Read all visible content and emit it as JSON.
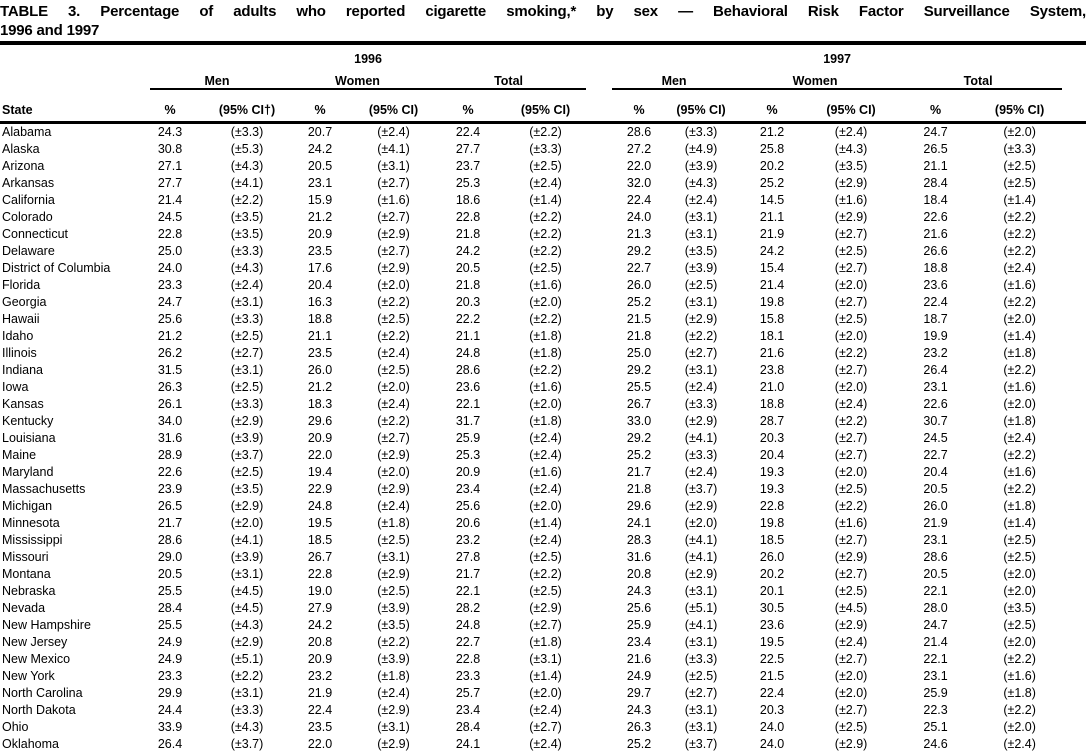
{
  "title": {
    "line1": "TABLE 3. Percentage of adults who reported cigarette smoking,* by sex — Behavioral Risk Factor Surveillance System,",
    "line2": "1996 and 1997"
  },
  "header": {
    "state": "State",
    "years": [
      "1996",
      "1997"
    ],
    "groups": [
      "Men",
      "Women",
      "Total"
    ],
    "pct": "%",
    "ci_first": "(95% CI†)",
    "ci": "(95% CI)"
  },
  "colors": {
    "text": "#000000",
    "background": "#ffffff"
  },
  "rows": [
    {
      "state": "Alabama",
      "cells": [
        "24.3",
        "(±3.3)",
        "20.7",
        "(±2.4)",
        "22.4",
        "(±2.2)",
        "28.6",
        "(±3.3)",
        "21.2",
        "(±2.4)",
        "24.7",
        "(±2.0)"
      ]
    },
    {
      "state": "Alaska",
      "cells": [
        "30.8",
        "(±5.3)",
        "24.2",
        "(±4.1)",
        "27.7",
        "(±3.3)",
        "27.2",
        "(±4.9)",
        "25.8",
        "(±4.3)",
        "26.5",
        "(±3.3)"
      ]
    },
    {
      "state": "Arizona",
      "cells": [
        "27.1",
        "(±4.3)",
        "20.5",
        "(±3.1)",
        "23.7",
        "(±2.5)",
        "22.0",
        "(±3.9)",
        "20.2",
        "(±3.5)",
        "21.1",
        "(±2.5)"
      ]
    },
    {
      "state": "Arkansas",
      "cells": [
        "27.7",
        "(±4.1)",
        "23.1",
        "(±2.7)",
        "25.3",
        "(±2.4)",
        "32.0",
        "(±4.3)",
        "25.2",
        "(±2.9)",
        "28.4",
        "(±2.5)"
      ]
    },
    {
      "state": "California",
      "cells": [
        "21.4",
        "(±2.2)",
        "15.9",
        "(±1.6)",
        "18.6",
        "(±1.4)",
        "22.4",
        "(±2.4)",
        "14.5",
        "(±1.6)",
        "18.4",
        "(±1.4)"
      ]
    },
    {
      "state": "Colorado",
      "cells": [
        "24.5",
        "(±3.5)",
        "21.2",
        "(±2.7)",
        "22.8",
        "(±2.2)",
        "24.0",
        "(±3.1)",
        "21.1",
        "(±2.9)",
        "22.6",
        "(±2.2)"
      ]
    },
    {
      "state": "Connecticut",
      "cells": [
        "22.8",
        "(±3.5)",
        "20.9",
        "(±2.9)",
        "21.8",
        "(±2.2)",
        "21.3",
        "(±3.1)",
        "21.9",
        "(±2.7)",
        "21.6",
        "(±2.2)"
      ]
    },
    {
      "state": "Delaware",
      "cells": [
        "25.0",
        "(±3.3)",
        "23.5",
        "(±2.7)",
        "24.2",
        "(±2.2)",
        "29.2",
        "(±3.5)",
        "24.2",
        "(±2.5)",
        "26.6",
        "(±2.2)"
      ]
    },
    {
      "state": "District of Columbia",
      "cells": [
        "24.0",
        "(±4.3)",
        "17.6",
        "(±2.9)",
        "20.5",
        "(±2.5)",
        "22.7",
        "(±3.9)",
        "15.4",
        "(±2.7)",
        "18.8",
        "(±2.4)"
      ]
    },
    {
      "state": "Florida",
      "cells": [
        "23.3",
        "(±2.4)",
        "20.4",
        "(±2.0)",
        "21.8",
        "(±1.6)",
        "26.0",
        "(±2.5)",
        "21.4",
        "(±2.0)",
        "23.6",
        "(±1.6)"
      ]
    },
    {
      "state": "Georgia",
      "cells": [
        "24.7",
        "(±3.1)",
        "16.3",
        "(±2.2)",
        "20.3",
        "(±2.0)",
        "25.2",
        "(±3.1)",
        "19.8",
        "(±2.7)",
        "22.4",
        "(±2.2)"
      ]
    },
    {
      "state": "Hawaii",
      "cells": [
        "25.6",
        "(±3.3)",
        "18.8",
        "(±2.5)",
        "22.2",
        "(±2.2)",
        "21.5",
        "(±2.9)",
        "15.8",
        "(±2.5)",
        "18.7",
        "(±2.0)"
      ]
    },
    {
      "state": "Idaho",
      "cells": [
        "21.2",
        "(±2.5)",
        "21.1",
        "(±2.2)",
        "21.1",
        "(±1.8)",
        "21.8",
        "(±2.2)",
        "18.1",
        "(±2.0)",
        "19.9",
        "(±1.4)"
      ]
    },
    {
      "state": "Illinois",
      "cells": [
        "26.2",
        "(±2.7)",
        "23.5",
        "(±2.4)",
        "24.8",
        "(±1.8)",
        "25.0",
        "(±2.7)",
        "21.6",
        "(±2.2)",
        "23.2",
        "(±1.8)"
      ]
    },
    {
      "state": "Indiana",
      "cells": [
        "31.5",
        "(±3.1)",
        "26.0",
        "(±2.5)",
        "28.6",
        "(±2.2)",
        "29.2",
        "(±3.1)",
        "23.8",
        "(±2.7)",
        "26.4",
        "(±2.2)"
      ]
    },
    {
      "state": "Iowa",
      "cells": [
        "26.3",
        "(±2.5)",
        "21.2",
        "(±2.0)",
        "23.6",
        "(±1.6)",
        "25.5",
        "(±2.4)",
        "21.0",
        "(±2.0)",
        "23.1",
        "(±1.6)"
      ]
    },
    {
      "state": "Kansas",
      "cells": [
        "26.1",
        "(±3.3)",
        "18.3",
        "(±2.4)",
        "22.1",
        "(±2.0)",
        "26.7",
        "(±3.3)",
        "18.8",
        "(±2.4)",
        "22.6",
        "(±2.0)"
      ]
    },
    {
      "state": "Kentucky",
      "cells": [
        "34.0",
        "(±2.9)",
        "29.6",
        "(±2.2)",
        "31.7",
        "(±1.8)",
        "33.0",
        "(±2.9)",
        "28.7",
        "(±2.2)",
        "30.7",
        "(±1.8)"
      ]
    },
    {
      "state": "Louisiana",
      "cells": [
        "31.6",
        "(±3.9)",
        "20.9",
        "(±2.7)",
        "25.9",
        "(±2.4)",
        "29.2",
        "(±4.1)",
        "20.3",
        "(±2.7)",
        "24.5",
        "(±2.4)"
      ]
    },
    {
      "state": "Maine",
      "cells": [
        "28.9",
        "(±3.7)",
        "22.0",
        "(±2.9)",
        "25.3",
        "(±2.4)",
        "25.2",
        "(±3.3)",
        "20.4",
        "(±2.7)",
        "22.7",
        "(±2.2)"
      ]
    },
    {
      "state": "Maryland",
      "cells": [
        "22.6",
        "(±2.5)",
        "19.4",
        "(±2.0)",
        "20.9",
        "(±1.6)",
        "21.7",
        "(±2.4)",
        "19.3",
        "(±2.0)",
        "20.4",
        "(±1.6)"
      ]
    },
    {
      "state": "Massachusetts",
      "cells": [
        "23.9",
        "(±3.5)",
        "22.9",
        "(±2.9)",
        "23.4",
        "(±2.4)",
        "21.8",
        "(±3.7)",
        "19.3",
        "(±2.5)",
        "20.5",
        "(±2.2)"
      ]
    },
    {
      "state": "Michigan",
      "cells": [
        "26.5",
        "(±2.9)",
        "24.8",
        "(±2.4)",
        "25.6",
        "(±2.0)",
        "29.6",
        "(±2.9)",
        "22.8",
        "(±2.2)",
        "26.0",
        "(±1.8)"
      ]
    },
    {
      "state": "Minnesota",
      "cells": [
        "21.7",
        "(±2.0)",
        "19.5",
        "(±1.8)",
        "20.6",
        "(±1.4)",
        "24.1",
        "(±2.0)",
        "19.8",
        "(±1.6)",
        "21.9",
        "(±1.4)"
      ]
    },
    {
      "state": "Mississippi",
      "cells": [
        "28.6",
        "(±4.1)",
        "18.5",
        "(±2.5)",
        "23.2",
        "(±2.4)",
        "28.3",
        "(±4.1)",
        "18.5",
        "(±2.7)",
        "23.1",
        "(±2.5)"
      ]
    },
    {
      "state": "Missouri",
      "cells": [
        "29.0",
        "(±3.9)",
        "26.7",
        "(±3.1)",
        "27.8",
        "(±2.5)",
        "31.6",
        "(±4.1)",
        "26.0",
        "(±2.9)",
        "28.6",
        "(±2.5)"
      ]
    },
    {
      "state": "Montana",
      "cells": [
        "20.5",
        "(±3.1)",
        "22.8",
        "(±2.9)",
        "21.7",
        "(±2.2)",
        "20.8",
        "(±2.9)",
        "20.2",
        "(±2.7)",
        "20.5",
        "(±2.0)"
      ]
    },
    {
      "state": "Nebraska",
      "cells": [
        "25.5",
        "(±4.5)",
        "19.0",
        "(±2.5)",
        "22.1",
        "(±2.5)",
        "24.3",
        "(±3.1)",
        "20.1",
        "(±2.5)",
        "22.1",
        "(±2.0)"
      ]
    },
    {
      "state": "Nevada",
      "cells": [
        "28.4",
        "(±4.5)",
        "27.9",
        "(±3.9)",
        "28.2",
        "(±2.9)",
        "25.6",
        "(±5.1)",
        "30.5",
        "(±4.5)",
        "28.0",
        "(±3.5)"
      ]
    },
    {
      "state": "New Hampshire",
      "cells": [
        "25.5",
        "(±4.3)",
        "24.2",
        "(±3.5)",
        "24.8",
        "(±2.7)",
        "25.9",
        "(±4.1)",
        "23.6",
        "(±2.9)",
        "24.7",
        "(±2.5)"
      ]
    },
    {
      "state": "New Jersey",
      "cells": [
        "24.9",
        "(±2.9)",
        "20.8",
        "(±2.2)",
        "22.7",
        "(±1.8)",
        "23.4",
        "(±3.1)",
        "19.5",
        "(±2.4)",
        "21.4",
        "(±2.0)"
      ]
    },
    {
      "state": "New Mexico",
      "cells": [
        "24.9",
        "(±5.1)",
        "20.9",
        "(±3.9)",
        "22.8",
        "(±3.1)",
        "21.6",
        "(±3.3)",
        "22.5",
        "(±2.7)",
        "22.1",
        "(±2.2)"
      ]
    },
    {
      "state": "New York",
      "cells": [
        "23.3",
        "(±2.2)",
        "23.2",
        "(±1.8)",
        "23.3",
        "(±1.4)",
        "24.9",
        "(±2.5)",
        "21.5",
        "(±2.0)",
        "23.1",
        "(±1.6)"
      ]
    },
    {
      "state": "North Carolina",
      "cells": [
        "29.9",
        "(±3.1)",
        "21.9",
        "(±2.4)",
        "25.7",
        "(±2.0)",
        "29.7",
        "(±2.7)",
        "22.4",
        "(±2.0)",
        "25.9",
        "(±1.8)"
      ]
    },
    {
      "state": "North Dakota",
      "cells": [
        "24.4",
        "(±3.3)",
        "22.4",
        "(±2.9)",
        "23.4",
        "(±2.4)",
        "24.3",
        "(±3.1)",
        "20.3",
        "(±2.7)",
        "22.3",
        "(±2.2)"
      ]
    },
    {
      "state": "Ohio",
      "cells": [
        "33.9",
        "(±4.3)",
        "23.5",
        "(±3.1)",
        "28.4",
        "(±2.7)",
        "26.3",
        "(±3.1)",
        "24.0",
        "(±2.5)",
        "25.1",
        "(±2.0)"
      ]
    },
    {
      "state": "Oklahoma",
      "cells": [
        "26.4",
        "(±3.7)",
        "22.0",
        "(±2.9)",
        "24.1",
        "(±2.4)",
        "25.2",
        "(±3.7)",
        "24.0",
        "(±2.9)",
        "24.6",
        "(±2.4)"
      ]
    }
  ]
}
